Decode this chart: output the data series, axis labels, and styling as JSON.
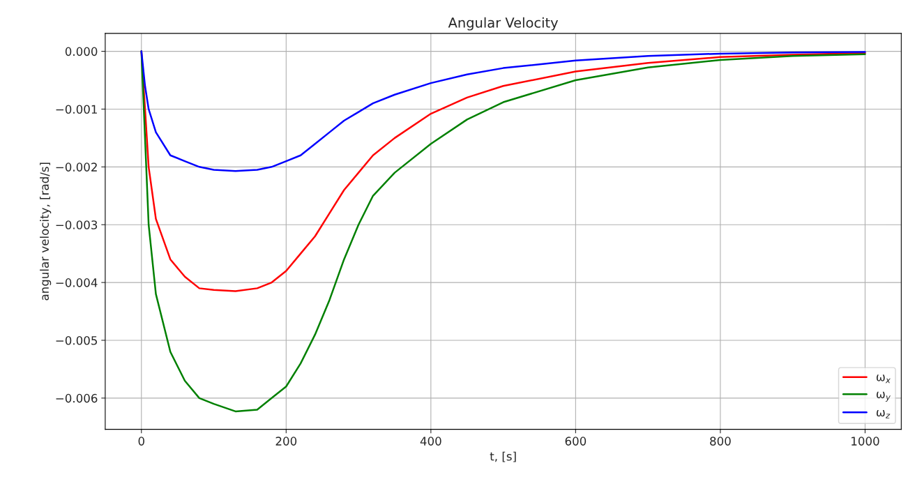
{
  "chart_data": {
    "type": "line",
    "title": "Angular Velocity",
    "xlabel": "t, [s]",
    "ylabel": "angular velocity, [rad/s]",
    "x": [
      0,
      5,
      10,
      20,
      40,
      60,
      80,
      100,
      130,
      160,
      180,
      200,
      220,
      240,
      260,
      280,
      300,
      320,
      350,
      400,
      450,
      500,
      600,
      700,
      800,
      900,
      1000
    ],
    "series": [
      {
        "name": "ω$_{x}$",
        "color": "#ff0000",
        "values": [
          0,
          -0.001,
          -0.002,
          -0.0029,
          -0.0036,
          -0.0039,
          -0.0041,
          -0.00413,
          -0.00415,
          -0.0041,
          -0.004,
          -0.0038,
          -0.0035,
          -0.0032,
          -0.0028,
          -0.0024,
          -0.0021,
          -0.0018,
          -0.0015,
          -0.00108,
          -0.0008,
          -0.0006,
          -0.00035,
          -0.0002,
          -0.0001,
          -6e-05,
          -3e-05
        ]
      },
      {
        "name": "ω$_{y}$",
        "color": "#008000",
        "values": [
          0,
          -0.0015,
          -0.003,
          -0.0042,
          -0.0052,
          -0.0057,
          -0.006,
          -0.0061,
          -0.00623,
          -0.0062,
          -0.006,
          -0.0058,
          -0.0054,
          -0.0049,
          -0.0043,
          -0.0036,
          -0.003,
          -0.0025,
          -0.0021,
          -0.0016,
          -0.00118,
          -0.00088,
          -0.0005,
          -0.00028,
          -0.00015,
          -8e-05,
          -5e-05
        ]
      },
      {
        "name": "ω$_{z}$",
        "color": "#0000ff",
        "values": [
          0,
          -0.0006,
          -0.001,
          -0.0014,
          -0.0018,
          -0.0019,
          -0.002,
          -0.00205,
          -0.00207,
          -0.00205,
          -0.002,
          -0.0019,
          -0.0018,
          -0.0016,
          -0.0014,
          -0.0012,
          -0.00105,
          -0.0009,
          -0.00075,
          -0.00055,
          -0.0004,
          -0.00029,
          -0.00016,
          -8e-05,
          -4e-05,
          -2e-05,
          -1e-05
        ]
      }
    ],
    "xlim": [
      -50,
      1050
    ],
    "ylim": [
      -0.00654,
      0.00031
    ],
    "xticks": [
      0,
      200,
      400,
      600,
      800,
      1000
    ],
    "yticks": [
      {
        "value": 0,
        "label": "0.000"
      },
      {
        "value": -0.001,
        "label": "−0.001"
      },
      {
        "value": -0.002,
        "label": "−0.002"
      },
      {
        "value": -0.003,
        "label": "−0.003"
      },
      {
        "value": -0.004,
        "label": "−0.004"
      },
      {
        "value": -0.005,
        "label": "−0.005"
      },
      {
        "value": -0.006,
        "label": "−0.006"
      }
    ],
    "grid": true,
    "legend": "bottom right",
    "line_style": "solid"
  }
}
